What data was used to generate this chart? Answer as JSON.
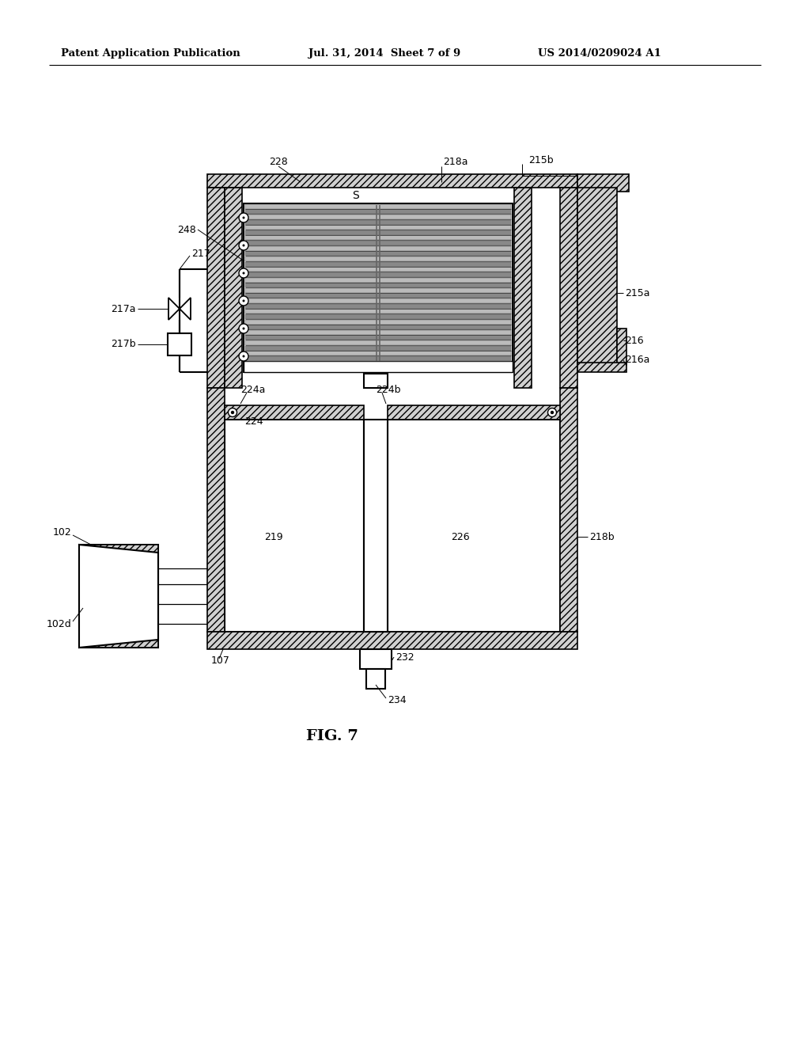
{
  "header_left": "Patent Application Publication",
  "header_mid": "Jul. 31, 2014  Sheet 7 of 9",
  "header_right": "US 2014/0209024 A1",
  "figure_label": "FIG. 7",
  "background": "#ffffff",
  "line_color": "#000000"
}
